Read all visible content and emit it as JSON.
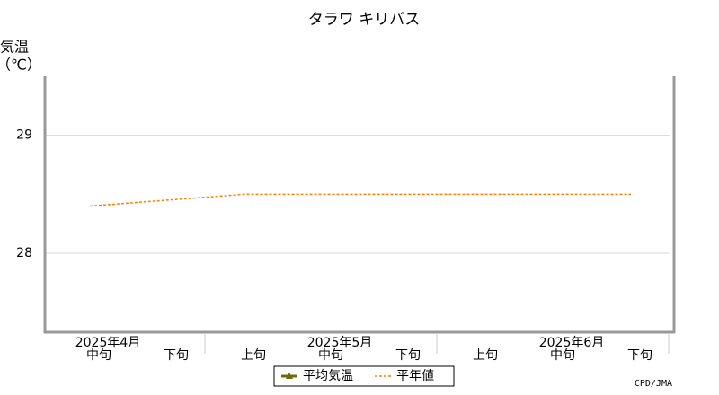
{
  "chart_data": {
    "type": "line",
    "title": "タラワ キリバス",
    "y_label_line1": "気温",
    "y_label_line2": "（℃）",
    "categories": [
      "中旬",
      "下旬",
      "上旬",
      "中旬",
      "下旬",
      "上旬",
      "中旬",
      "下旬"
    ],
    "month_labels": [
      "2025年4月",
      null,
      null,
      "2025年5月",
      null,
      null,
      "2025年6月",
      null
    ],
    "series": [
      {
        "name": "平均気温",
        "color": "#6b6b10",
        "dashed": false,
        "values": [
          null,
          null,
          null,
          null,
          null,
          null,
          null,
          null
        ]
      },
      {
        "name": "平年値",
        "color": "#ff8000",
        "dashed": true,
        "values": [
          28.4,
          28.45,
          28.5,
          28.5,
          28.5,
          28.5,
          28.5,
          28.5
        ]
      }
    ],
    "ylim": [
      27.33,
      29.5
    ],
    "yticks": [
      28,
      29
    ],
    "grid": true,
    "legend": "bottom",
    "source": "CPD/JMA"
  }
}
